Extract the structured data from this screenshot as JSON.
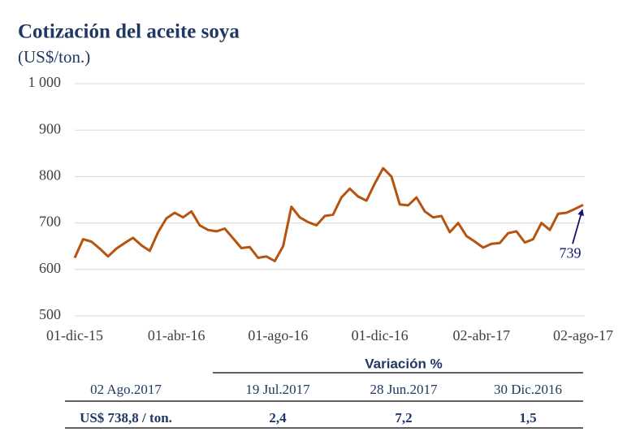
{
  "chart_data": {
    "type": "line",
    "title": "Cotización del aceite soya",
    "subtitle": "(US$/ton.)",
    "x": [
      "2015-12-01",
      "2015-12-11",
      "2015-12-21",
      "2015-12-31",
      "2016-01-10",
      "2016-01-20",
      "2016-01-30",
      "2016-02-09",
      "2016-02-19",
      "2016-02-29",
      "2016-03-10",
      "2016-03-20",
      "2016-03-30",
      "2016-04-09",
      "2016-04-19",
      "2016-04-29",
      "2016-05-09",
      "2016-05-19",
      "2016-05-29",
      "2016-06-08",
      "2016-06-18",
      "2016-06-28",
      "2016-07-08",
      "2016-07-18",
      "2016-07-28",
      "2016-08-07",
      "2016-08-17",
      "2016-08-27",
      "2016-09-06",
      "2016-09-16",
      "2016-09-26",
      "2016-10-06",
      "2016-10-16",
      "2016-10-26",
      "2016-11-05",
      "2016-11-15",
      "2016-11-25",
      "2016-12-05",
      "2016-12-15",
      "2016-12-25",
      "2017-01-04",
      "2017-01-14",
      "2017-01-24",
      "2017-02-03",
      "2017-02-13",
      "2017-02-23",
      "2017-03-05",
      "2017-03-15",
      "2017-03-25",
      "2017-04-04",
      "2017-04-14",
      "2017-04-24",
      "2017-05-04",
      "2017-05-14",
      "2017-05-24",
      "2017-06-03",
      "2017-06-13",
      "2017-06-23",
      "2017-07-03",
      "2017-07-13",
      "2017-07-23",
      "2017-08-02"
    ],
    "values": [
      625,
      665,
      660,
      645,
      628,
      645,
      657,
      668,
      652,
      640,
      680,
      710,
      722,
      712,
      725,
      695,
      685,
      682,
      688,
      667,
      646,
      648,
      625,
      628,
      618,
      650,
      735,
      712,
      702,
      695,
      715,
      718,
      755,
      774,
      757,
      748,
      785,
      818,
      800,
      740,
      738,
      755,
      725,
      712,
      715,
      680,
      700,
      672,
      660,
      647,
      655,
      657,
      678,
      682,
      658,
      665,
      700,
      685,
      720,
      722,
      730,
      739
    ],
    "color": "#b5530f",
    "xlim": [
      "2015-12-01",
      "2017-08-02"
    ],
    "xticks": [
      {
        "value": "2015-12-01",
        "label": "01-dic-15"
      },
      {
        "value": "2016-04-01",
        "label": "01-abr-16"
      },
      {
        "value": "2016-08-01",
        "label": "01-ago-16"
      },
      {
        "value": "2016-12-01",
        "label": "01-dic-16"
      },
      {
        "value": "2017-04-02",
        "label": "02-abr-17"
      },
      {
        "value": "2017-08-02",
        "label": "02-ago-17"
      }
    ],
    "ylim": [
      500,
      1000
    ],
    "yticks": [
      500,
      600,
      700,
      800,
      900,
      {
        "value": 1000,
        "label": "1 000"
      }
    ],
    "grid": true,
    "annotation": "739",
    "annotation_color": "#14146e"
  },
  "table": {
    "group_header": "Variación %",
    "columns": [
      "02 Ago.2017",
      "19 Jul.2017",
      "28 Jun.2017",
      "30 Dic.2016"
    ],
    "rows": [
      [
        "US$ 738,8 / ton.",
        "2,4",
        "7,2",
        "1,5"
      ]
    ]
  }
}
